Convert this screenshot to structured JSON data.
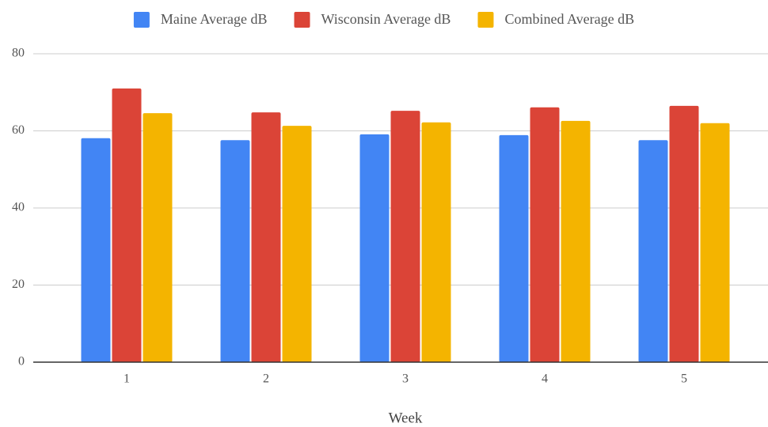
{
  "chart_data": {
    "type": "bar",
    "x_label": "Week",
    "categories": [
      "1",
      "2",
      "3",
      "4",
      "5"
    ],
    "series": [
      {
        "name": "Maine Average dB",
        "color": "#4285f4",
        "values": [
          58.1,
          57.6,
          59.1,
          58.9,
          57.6
        ]
      },
      {
        "name": "Wisconsin Average dB",
        "color": "#db4437",
        "values": [
          71.0,
          64.8,
          65.2,
          66.1,
          66.5
        ]
      },
      {
        "name": "Combined Average dB",
        "color": "#f4b400",
        "values": [
          64.6,
          61.3,
          62.2,
          62.6,
          62.0
        ]
      }
    ],
    "ylim": [
      0,
      80
    ],
    "yticks": [
      0,
      20,
      40,
      60,
      80
    ],
    "grid": true,
    "legend": "top"
  }
}
